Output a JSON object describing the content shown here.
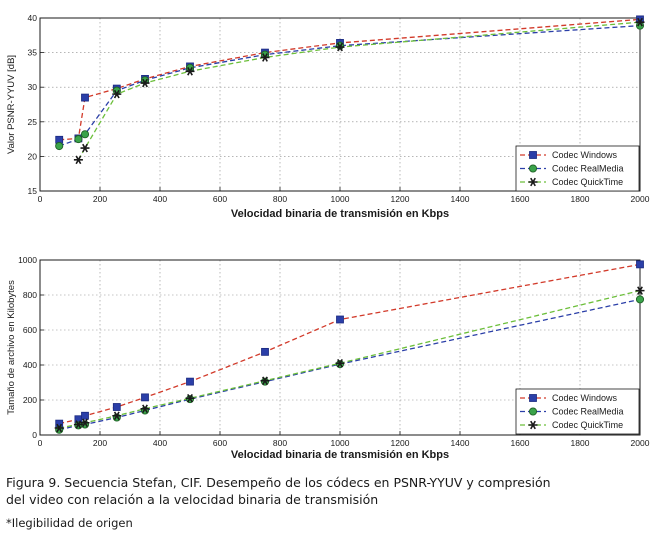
{
  "chart_data": [
    {
      "type": "line",
      "ylabel": "Valor PSNR-YYUV [dB]",
      "xlabel": "Velocidad binaria de transmisión en Kbps",
      "xlim": [
        0,
        2000
      ],
      "ylim": [
        15,
        40
      ],
      "xticks": [
        0,
        200,
        400,
        600,
        800,
        1000,
        1200,
        1400,
        1600,
        1800,
        2000
      ],
      "yticks": [
        15,
        20,
        25,
        30,
        35,
        40
      ],
      "grid": true,
      "legend_position": "bottom-right",
      "series": [
        {
          "name": "Codec Windows",
          "color": "#d23a2a",
          "marker": "square",
          "x": [
            64,
            128,
            150,
            256,
            350,
            500,
            750,
            1000,
            2000
          ],
          "y": [
            22.4,
            22.6,
            28.5,
            29.8,
            31.2,
            33.0,
            35.0,
            36.4,
            39.8
          ]
        },
        {
          "name": "Codec RealMedia",
          "color": "#2b3fa8",
          "marker": "circle",
          "x": [
            64,
            128,
            150,
            256,
            350,
            500,
            750,
            1000,
            2000
          ],
          "y": [
            21.5,
            22.5,
            23.2,
            29.5,
            31.0,
            32.8,
            34.7,
            36.0,
            38.9
          ]
        },
        {
          "name": "Codec QuickTime",
          "color": "#6cbf3a",
          "marker": "star",
          "x": [
            128,
            150,
            256,
            350,
            500,
            750,
            1000,
            2000
          ],
          "y": [
            19.5,
            21.2,
            29.0,
            30.6,
            32.3,
            34.3,
            35.8,
            39.4
          ]
        }
      ]
    },
    {
      "type": "line",
      "ylabel": "Tamaño de archivo en Kilobytes",
      "xlabel": "Velocidad binaria de transmisión en Kbps",
      "xlim": [
        0,
        2000
      ],
      "ylim": [
        0,
        1000
      ],
      "xticks": [
        0,
        200,
        400,
        600,
        800,
        1000,
        1200,
        1400,
        1600,
        1800,
        2000
      ],
      "yticks": [
        0,
        200,
        400,
        600,
        800,
        1000
      ],
      "grid": true,
      "legend_position": "bottom-right",
      "series": [
        {
          "name": "Codec Windows",
          "color": "#d23a2a",
          "marker": "square",
          "x": [
            64,
            128,
            150,
            256,
            350,
            500,
            750,
            1000,
            2000
          ],
          "y": [
            65,
            90,
            110,
            160,
            215,
            305,
            475,
            660,
            975
          ]
        },
        {
          "name": "Codec RealMedia",
          "color": "#2b3fa8",
          "marker": "circle",
          "x": [
            64,
            128,
            150,
            256,
            350,
            500,
            750,
            1000,
            2000
          ],
          "y": [
            30,
            55,
            60,
            100,
            140,
            205,
            305,
            405,
            775
          ]
        },
        {
          "name": "Codec QuickTime",
          "color": "#6cbf3a",
          "marker": "star",
          "x": [
            64,
            128,
            150,
            256,
            350,
            500,
            750,
            1000,
            2000
          ],
          "y": [
            40,
            60,
            70,
            110,
            150,
            210,
            310,
            410,
            825
          ]
        }
      ]
    }
  ],
  "caption": {
    "line1": "Figura 9. Secuencia Stefan, CIF. Desempeño de los códecs en PSNR-YYUV y compresión",
    "line2": "del video con relación a la velocidad binaria de transmisión"
  },
  "note": "*Ilegibilidad de origen"
}
